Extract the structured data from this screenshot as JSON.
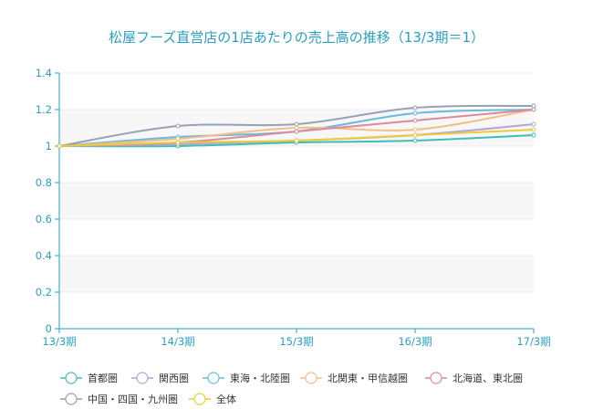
{
  "chart_data": {
    "type": "line",
    "title": "松屋フーズ直営店の1店あたりの売上高の推移（13/3期＝1）",
    "xlabel": "",
    "ylabel": "",
    "categories": [
      "13/3期",
      "14/3期",
      "15/3期",
      "16/3期",
      "17/3期"
    ],
    "ylim": [
      0,
      1.4
    ],
    "yticks": [
      "0",
      "0.2",
      "0.4",
      "0.6",
      "0.8",
      "1",
      "1.2",
      "1.4"
    ],
    "grid": true,
    "legend_position": "bottom",
    "series": [
      {
        "name": "首都圏",
        "color": "#3fbfb3",
        "values": [
          1.0,
          1.0,
          1.02,
          1.03,
          1.06
        ]
      },
      {
        "name": "関西圏",
        "color": "#b3a3d6",
        "values": [
          1.0,
          1.01,
          1.03,
          1.06,
          1.12
        ]
      },
      {
        "name": "東海・北陸圏",
        "color": "#6bb9df",
        "values": [
          1.0,
          1.05,
          1.08,
          1.18,
          1.2
        ]
      },
      {
        "name": "北関東・甲信越圏",
        "color": "#f3bd85",
        "values": [
          1.0,
          1.04,
          1.1,
          1.09,
          1.2
        ]
      },
      {
        "name": "北海道、東北圏",
        "color": "#d98a9b",
        "values": [
          1.0,
          1.02,
          1.08,
          1.14,
          1.2
        ]
      },
      {
        "name": "中国・四国・九州圏",
        "color": "#96a1b3",
        "values": [
          1.0,
          1.11,
          1.12,
          1.21,
          1.22
        ]
      },
      {
        "name": "全体",
        "color": "#e8cc3a",
        "values": [
          1.0,
          1.02,
          1.03,
          1.06,
          1.09
        ]
      }
    ]
  }
}
